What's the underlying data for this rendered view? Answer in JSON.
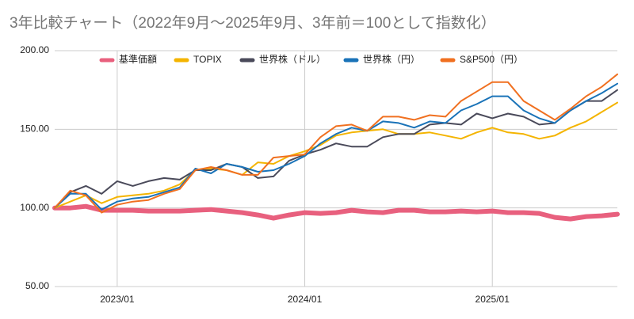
{
  "chart_data": {
    "type": "line",
    "title": "3年比較チャート（2022年9月〜2025年9月、3年前＝100として指数化）",
    "x": [
      "2022/09",
      "2022/10",
      "2022/11",
      "2022/12",
      "2023/01",
      "2023/02",
      "2023/03",
      "2023/04",
      "2023/05",
      "2023/06",
      "2023/07",
      "2023/08",
      "2023/09",
      "2023/10",
      "2023/11",
      "2023/12",
      "2024/01",
      "2024/02",
      "2024/03",
      "2024/04",
      "2024/05",
      "2024/06",
      "2024/07",
      "2024/08",
      "2024/09",
      "2024/10",
      "2024/11",
      "2024/12",
      "2025/01",
      "2025/02",
      "2025/03",
      "2025/04",
      "2025/05",
      "2025/06",
      "2025/07",
      "2025/08",
      "2025/09"
    ],
    "xticks": [
      "2023/01",
      "2024/01",
      "2025/01"
    ],
    "ylim": [
      50,
      200
    ],
    "yticks": [
      {
        "value": 50,
        "label": "50.00"
      },
      {
        "value": 100,
        "label": "100.00"
      },
      {
        "value": 150,
        "label": "150.00"
      },
      {
        "value": 200,
        "label": "200.00"
      }
    ],
    "grid": true,
    "legend": "top",
    "series": [
      {
        "name": "基準価額",
        "color": "#e8607e",
        "values": [
          100,
          100,
          101,
          98.5,
          98.5,
          98.5,
          98,
          98,
          98,
          98.5,
          99,
          98,
          97,
          95.5,
          93.5,
          95.5,
          97,
          96.5,
          97,
          98.5,
          97.5,
          97,
          98.5,
          98.5,
          97.5,
          97.5,
          98,
          97.5,
          98,
          97,
          97,
          96.5,
          94,
          93,
          94.5,
          95,
          96
        ]
      },
      {
        "name": "TOPIX",
        "color": "#f4b400",
        "values": [
          100,
          104,
          108,
          103,
          107,
          108,
          109,
          111,
          115,
          124,
          125,
          124,
          121,
          129,
          128,
          133,
          136,
          140,
          146,
          148,
          149,
          150,
          147,
          147,
          148,
          146,
          144,
          148,
          151,
          148,
          147,
          144,
          146,
          151,
          155,
          161,
          167
        ]
      },
      {
        "name": "世界株（ドル）",
        "color": "#4a4a5a",
        "values": [
          100,
          110,
          114,
          109,
          117,
          114,
          117,
          119,
          118,
          124,
          124,
          128,
          126,
          119,
          120,
          130,
          134,
          137,
          141,
          139,
          139,
          145,
          147,
          147,
          153,
          154,
          153,
          160,
          157,
          160,
          158,
          153,
          154,
          162,
          168,
          168,
          175
        ]
      },
      {
        "name": "世界株（円）",
        "color": "#1a73b8",
        "values": [
          100,
          109,
          109,
          99,
          104,
          106,
          107,
          110,
          113,
          125,
          122,
          128,
          126,
          123,
          124,
          128,
          133,
          141,
          147,
          151,
          149,
          155,
          154,
          151,
          155,
          154,
          162,
          166,
          171,
          171,
          162,
          157,
          154,
          162,
          168,
          173,
          179
        ]
      },
      {
        "name": "S&P500（円）",
        "color": "#f07020",
        "values": [
          100,
          111,
          108,
          97,
          102,
          104,
          105,
          109,
          112,
          124,
          126,
          124,
          121,
          121,
          132,
          133,
          134,
          145,
          152,
          153,
          149,
          158,
          158,
          156,
          159,
          158,
          168,
          174,
          180,
          180,
          168,
          162,
          156,
          163,
          171,
          177,
          185
        ]
      }
    ]
  }
}
